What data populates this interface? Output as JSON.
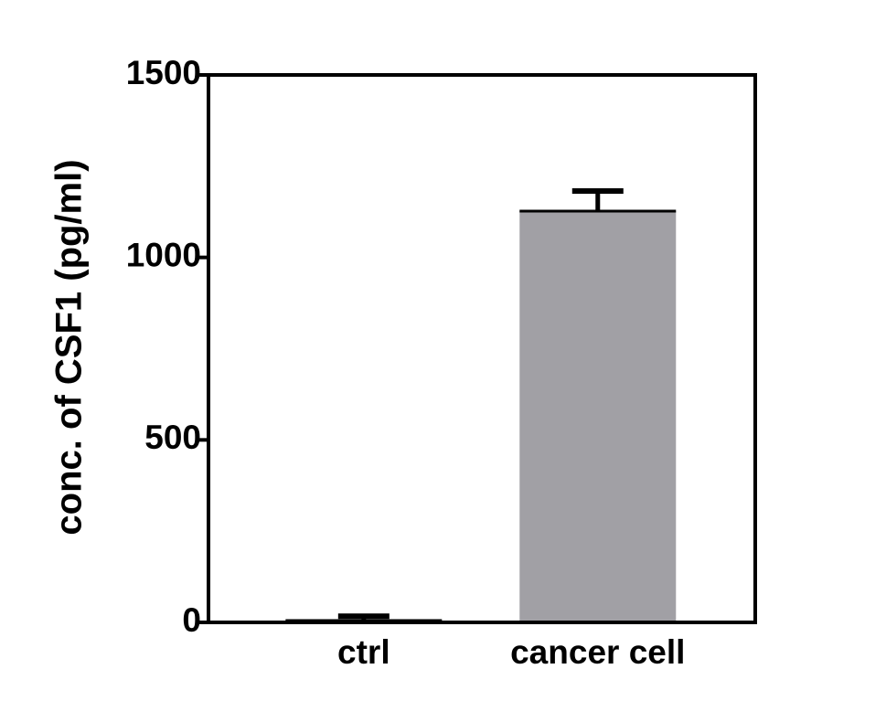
{
  "chart_data": {
    "type": "bar",
    "y_label": "conc. of CSF1 (pg/ml)",
    "categories": [
      "ctrl",
      "cancer cell"
    ],
    "values": [
      5,
      1127
    ],
    "errors": [
      12,
      55
    ],
    "color": "#a1a0a5",
    "ylim": [
      0,
      1500
    ],
    "yticks": [
      0,
      500,
      1000,
      1500
    ]
  }
}
